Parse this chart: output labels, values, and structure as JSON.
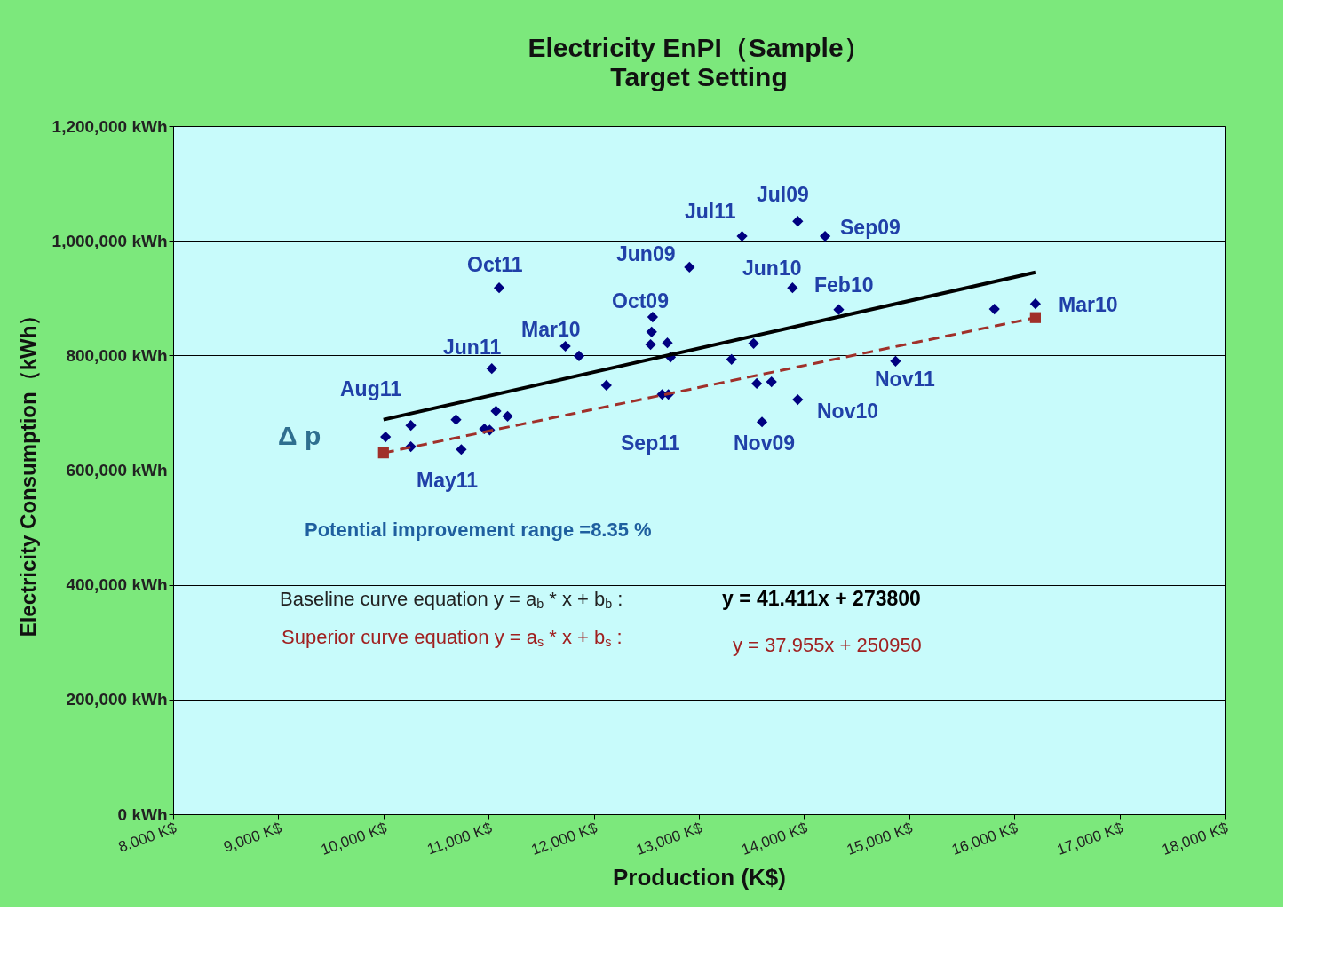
{
  "chart_data": {
    "type": "scatter",
    "title": "Electricity EnPI（Sample）",
    "subtitle": "Target Setting",
    "xlabel": "Production (K$)",
    "ylabel": "Electricity Consumption（kWh）",
    "xlim": [
      8000,
      18000
    ],
    "ylim": [
      0,
      1200000
    ],
    "xticks": [
      {
        "value": 8000,
        "label": "8,000 K$"
      },
      {
        "value": 9000,
        "label": "9,000 K$"
      },
      {
        "value": 10000,
        "label": "10,000 K$"
      },
      {
        "value": 11000,
        "label": "11,000 K$"
      },
      {
        "value": 12000,
        "label": "12,000 K$"
      },
      {
        "value": 13000,
        "label": "13,000 K$"
      },
      {
        "value": 14000,
        "label": "14,000 K$"
      },
      {
        "value": 15000,
        "label": "15,000 K$"
      },
      {
        "value": 16000,
        "label": "16,000 K$"
      },
      {
        "value": 17000,
        "label": "17,000 K$"
      },
      {
        "value": 18000,
        "label": "18,000 K$"
      }
    ],
    "yticks": [
      {
        "value": 0,
        "label": "0 kWh"
      },
      {
        "value": 200000,
        "label": "200,000 kWh"
      },
      {
        "value": 400000,
        "label": "400,000 kWh"
      },
      {
        "value": 600000,
        "label": "600,000 kWh"
      },
      {
        "value": 800000,
        "label": "800,000 kWh"
      },
      {
        "value": 1000000,
        "label": "1,000,000 kWh"
      },
      {
        "value": 1200000,
        "label": "1,200,000 kWh"
      }
    ],
    "grid": "y",
    "series": [
      {
        "color": "#000080",
        "marker": "diamond",
        "x": [
          10020,
          10260,
          10260,
          10690,
          10740,
          10960,
          11010,
          11070,
          11180,
          11030,
          11100,
          11730,
          11860,
          12120,
          12560,
          12550,
          12540,
          12700,
          12730,
          12650,
          12710,
          12910,
          13410,
          13940,
          14200,
          13890,
          14330,
          13520,
          13310,
          13550,
          13690,
          13600,
          13940,
          14870,
          15810,
          16200
        ],
        "values": [
          658000,
          678000,
          641000,
          688000,
          636000,
          672000,
          670000,
          703000,
          694000,
          777000,
          918000,
          816000,
          799000,
          748000,
          867000,
          841000,
          819000,
          822000,
          797000,
          732000,
          732000,
          954000,
          1008000,
          1034000,
          1008000,
          918000,
          880000,
          821000,
          793000,
          751000,
          754000,
          684000,
          723000,
          790000,
          881000,
          890000
        ]
      },
      {
        "type": "line",
        "color": "#000000",
        "line_style": "solid",
        "marker": "none",
        "x": [
          10000,
          16200
        ],
        "values": [
          688000,
          945000
        ]
      },
      {
        "type": "line",
        "color": "#a0302a",
        "line_style": "dashed",
        "marker": "square",
        "x": [
          10000,
          16200
        ],
        "values": [
          630000,
          866000
        ]
      }
    ],
    "annotations": [
      "Oct11",
      "Jun11",
      "Aug11",
      "May11",
      "Mar10",
      "Oct09",
      "Jun09",
      "Jul11",
      "Jul09",
      "Sep09",
      "Jun10",
      "Feb10",
      "Mar10",
      "Nov11",
      "Nov10",
      "Nov09",
      "Sep11",
      "Δ p",
      "Potential improvement range =8.35 %",
      "Baseline curve equation y = a$_{b}$ * x + b$_{b}$ :",
      "y = 41.411x + 273800",
      "Superior curve equation y = a$_{s}$ * x + b$_{s}$ :",
      "y = 37.955x + 250950"
    ]
  }
}
